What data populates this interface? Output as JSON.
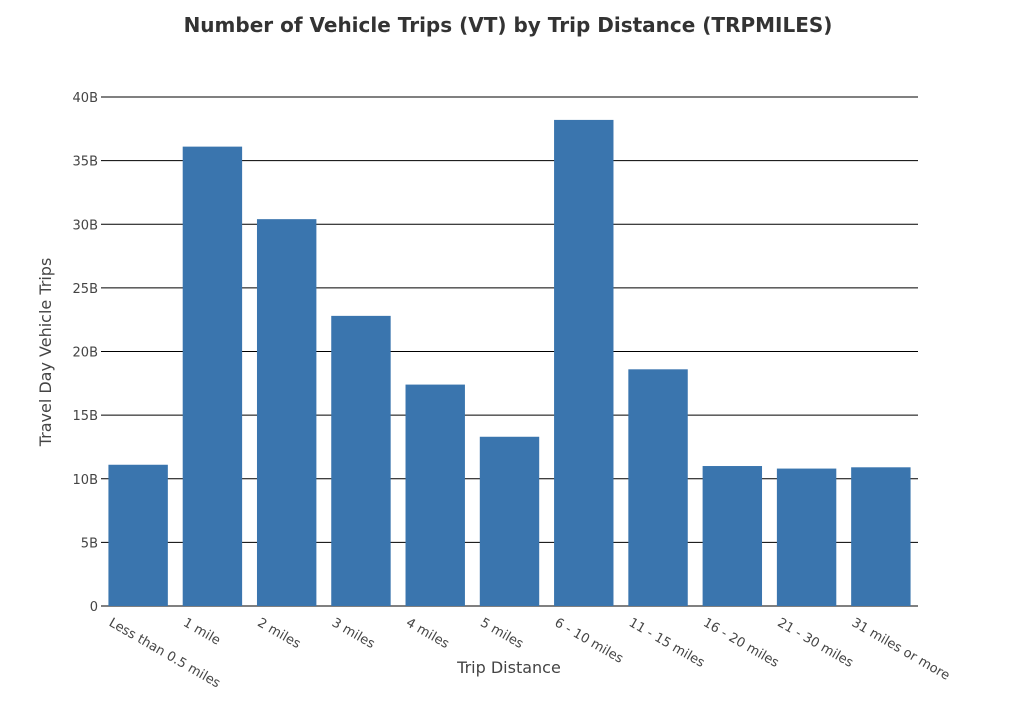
{
  "chart_data": {
    "type": "bar",
    "title": "Number of Vehicle Trips (VT) by Trip Distance (TRPMILES)",
    "xlabel": "Trip Distance",
    "ylabel": "Travel Day Vehicle Trips",
    "categories": [
      "Less than 0.5 miles",
      "1 mile",
      "2 miles",
      "3 miles",
      "4 miles",
      "5 miles",
      "6 - 10 miles",
      "11 - 15 miles",
      "16 - 20 miles",
      "21 - 30 miles",
      "31 miles or more"
    ],
    "values": [
      11.1,
      36.1,
      30.4,
      22.8,
      17.4,
      13.3,
      38.2,
      18.6,
      11.0,
      10.8,
      10.9
    ],
    "value_unit": "billion",
    "ylim": [
      0,
      40
    ],
    "yticks": [
      {
        "value": 0,
        "label": "0"
      },
      {
        "value": 5,
        "label": "5B"
      },
      {
        "value": 10,
        "label": "10B"
      },
      {
        "value": 15,
        "label": "15B"
      },
      {
        "value": 20,
        "label": "20B"
      },
      {
        "value": 25,
        "label": "25B"
      },
      {
        "value": 30,
        "label": "30B"
      },
      {
        "value": 35,
        "label": "35B"
      },
      {
        "value": 40,
        "label": "40B"
      }
    ],
    "grid": true,
    "bar_color": "#3a75ae",
    "grid_color": "#000000"
  }
}
